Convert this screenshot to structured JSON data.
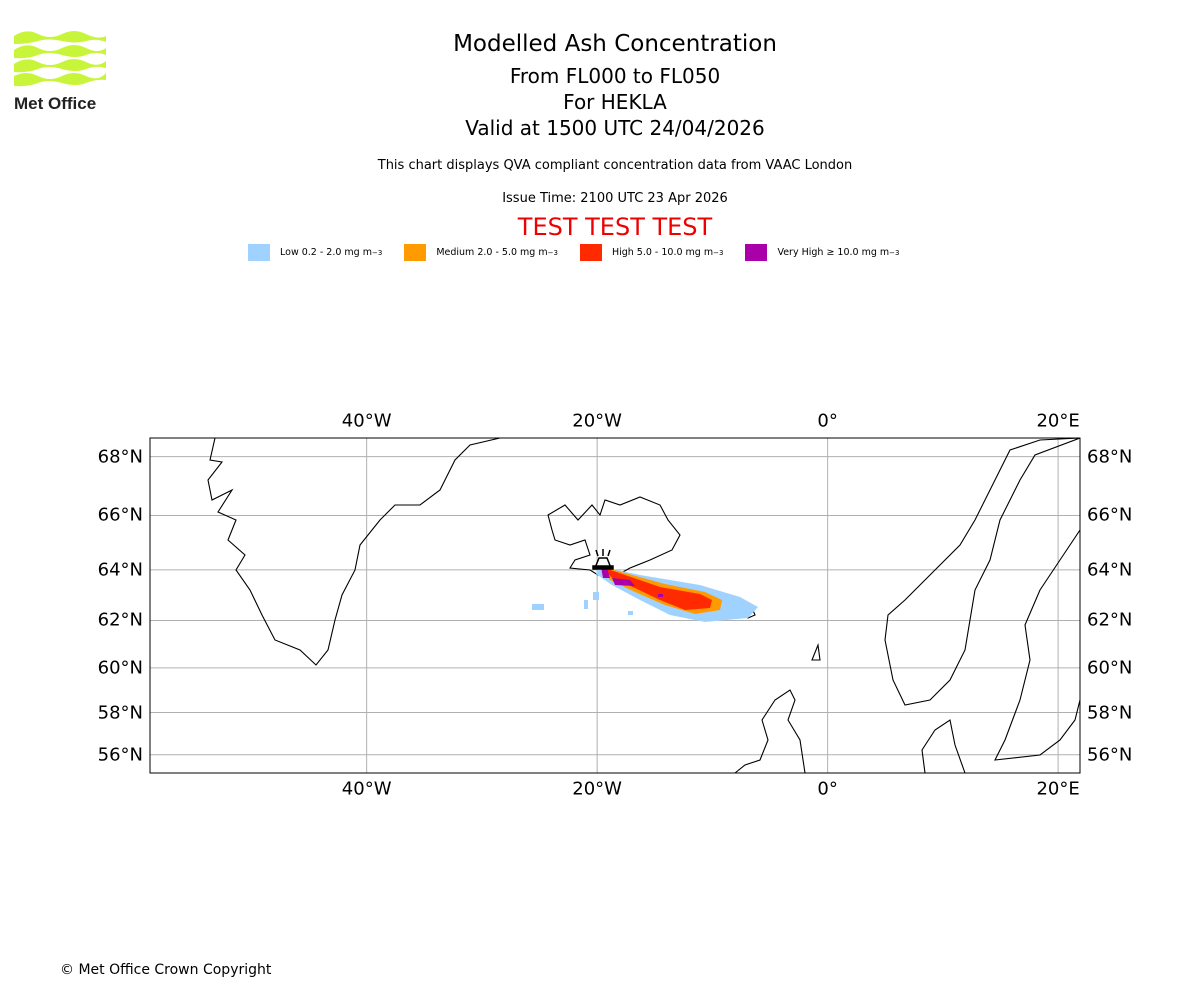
{
  "logo": {
    "text": "Met Office",
    "color": "#c8f53a"
  },
  "header": {
    "title": "Modelled Ash Concentration",
    "levels": "From FL000 to FL050",
    "volcano": "For HEKLA",
    "valid": "Valid at 1500 UTC 24/04/2026",
    "description": "This chart displays QVA compliant concentration data from VAAC London",
    "issue_time": "Issue Time: 2100 UTC 23 Apr 2026",
    "test_banner": "TEST TEST TEST"
  },
  "legend": [
    {
      "label": "Low 0.2 - 2.0 mg m",
      "sup": "−3",
      "color": "#a0d2ff"
    },
    {
      "label": "Medium 2.0 - 5.0 mg m",
      "sup": "−3",
      "color": "#ff9a00"
    },
    {
      "label": "High 5.0 - 10.0 mg m",
      "sup": "−3",
      "color": "#ff2a00"
    },
    {
      "label": "Very High  ≥  10.0 mg m",
      "sup": "−3",
      "color": "#aa00aa"
    }
  ],
  "map": {
    "lon_range": [
      -58.8,
      21.9
    ],
    "lat_range": [
      55.1,
      68.6
    ],
    "lon_ticks": [
      {
        "value": -40,
        "label": "40°W"
      },
      {
        "value": -20,
        "label": "20°W"
      },
      {
        "value": 0,
        "label": "0°"
      },
      {
        "value": 20,
        "label": "20°E"
      }
    ],
    "lat_ticks": [
      {
        "value": 68,
        "label": "68°N"
      },
      {
        "value": 66,
        "label": "66°N"
      },
      {
        "value": 64,
        "label": "64°N"
      },
      {
        "value": 62,
        "label": "62°N"
      },
      {
        "value": 60,
        "label": "60°N"
      },
      {
        "value": 58,
        "label": "58°N"
      },
      {
        "value": 56,
        "label": "56°N"
      }
    ],
    "volcano_symbol": "volcano-icon"
  },
  "footer": {
    "copyright": "© Met Office Crown Copyright"
  }
}
